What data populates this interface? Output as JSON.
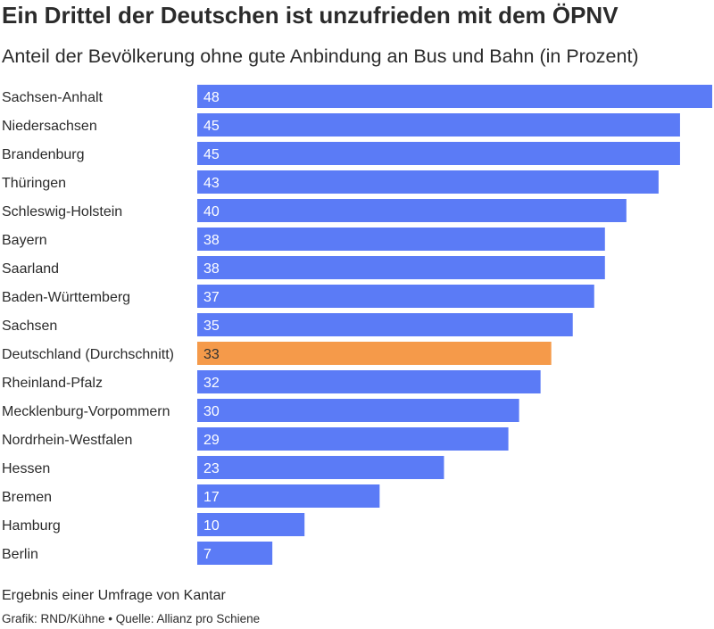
{
  "title": "Ein Drittel der Deutschen ist unzufrieden mit dem ÖPNV",
  "subtitle": "Anteil der Bevölkerung ohne gute Anbindung an Bus und Bahn (in Prozent)",
  "footnote": "Ergebnis einer Umfrage von Kantar",
  "credits": "Grafik: RND/Kühne • Quelle: Allianz pro Schiene",
  "colors": {
    "bar": "#5b7bf6",
    "highlight": "#f59a4a",
    "bar_text": "#ffffff",
    "highlight_text": "#333333"
  },
  "chart_data": {
    "type": "bar",
    "orientation": "horizontal",
    "categories": [
      "Sachsen-Anhalt",
      "Niedersachsen",
      "Brandenburg",
      "Thüringen",
      "Schleswig-Holstein",
      "Bayern",
      "Saarland",
      "Baden-Württemberg",
      "Sachsen",
      "Deutschland (Durchschnitt)",
      "Rheinland-Pfalz",
      "Mecklenburg-Vorpommern",
      "Nordrhein-Westfalen",
      "Hessen",
      "Bremen",
      "Hamburg",
      "Berlin"
    ],
    "values": [
      48,
      45,
      45,
      43,
      40,
      38,
      38,
      37,
      35,
      33,
      32,
      30,
      29,
      23,
      17,
      10,
      7
    ],
    "value_labels": [
      "48",
      "45",
      "45",
      "43",
      "40",
      "38",
      "38",
      "37",
      "35",
      "33",
      "32",
      "30",
      "29",
      "23",
      "17",
      "10",
      "7"
    ],
    "highlight_category": "Deutschland (Durchschnitt)",
    "xlim": [
      0,
      48
    ],
    "grid": false,
    "legend": "none"
  }
}
